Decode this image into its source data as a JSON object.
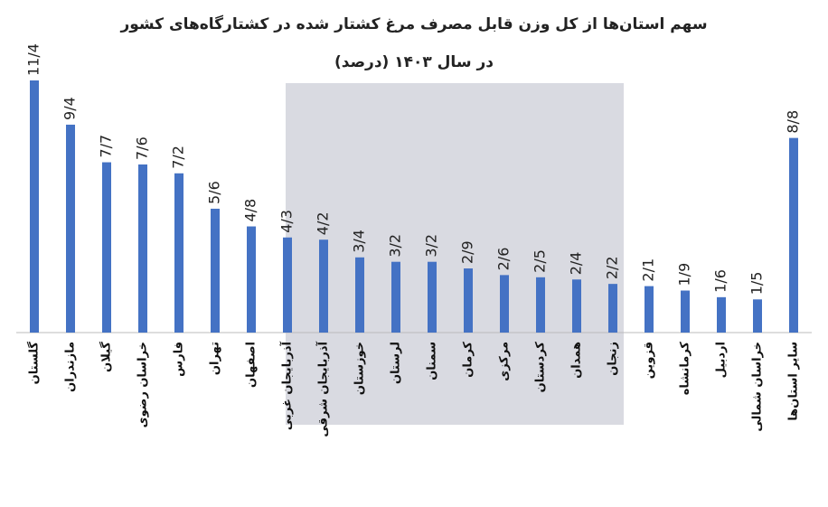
{
  "chart_data": {
    "type": "bar",
    "title": "سهم استان‌ها از کل وزن قابل مصرف مرغ کشتار شده در کشتارگاه‌های کشور",
    "subtitle": "در سال ۱۴۰۳ (درصد)",
    "categories": [
      "گلستان",
      "مازندران",
      "گیلان",
      "خراسان رضوی",
      "فارس",
      "تهران",
      "اصفهان",
      "آذربایجان غربی",
      "آذربایجان شرقی",
      "خوزستان",
      "لرستان",
      "سمنان",
      "کرمان",
      "مرکزی",
      "کردستان",
      "همدان",
      "زنجان",
      "قزوین",
      "کرمانشاه",
      "اردبیل",
      "خراسان شمالی",
      "سایر استان‌ها"
    ],
    "values": [
      11.4,
      9.4,
      7.7,
      7.6,
      7.2,
      5.6,
      4.8,
      4.3,
      4.2,
      3.4,
      3.2,
      3.2,
      2.9,
      2.6,
      2.5,
      2.4,
      2.2,
      2.1,
      1.9,
      1.6,
      1.5,
      8.8
    ],
    "value_labels": [
      "11/4",
      "9/4",
      "7/7",
      "7/6",
      "7/2",
      "5/6",
      "4/8",
      "4/3",
      "4/2",
      "3/4",
      "3/2",
      "3/2",
      "2/9",
      "2/6",
      "2/5",
      "2/4",
      "2/2",
      "2/1",
      "1/9",
      "1/6",
      "1/5",
      "8/8"
    ],
    "color": "#4472c4"
  }
}
